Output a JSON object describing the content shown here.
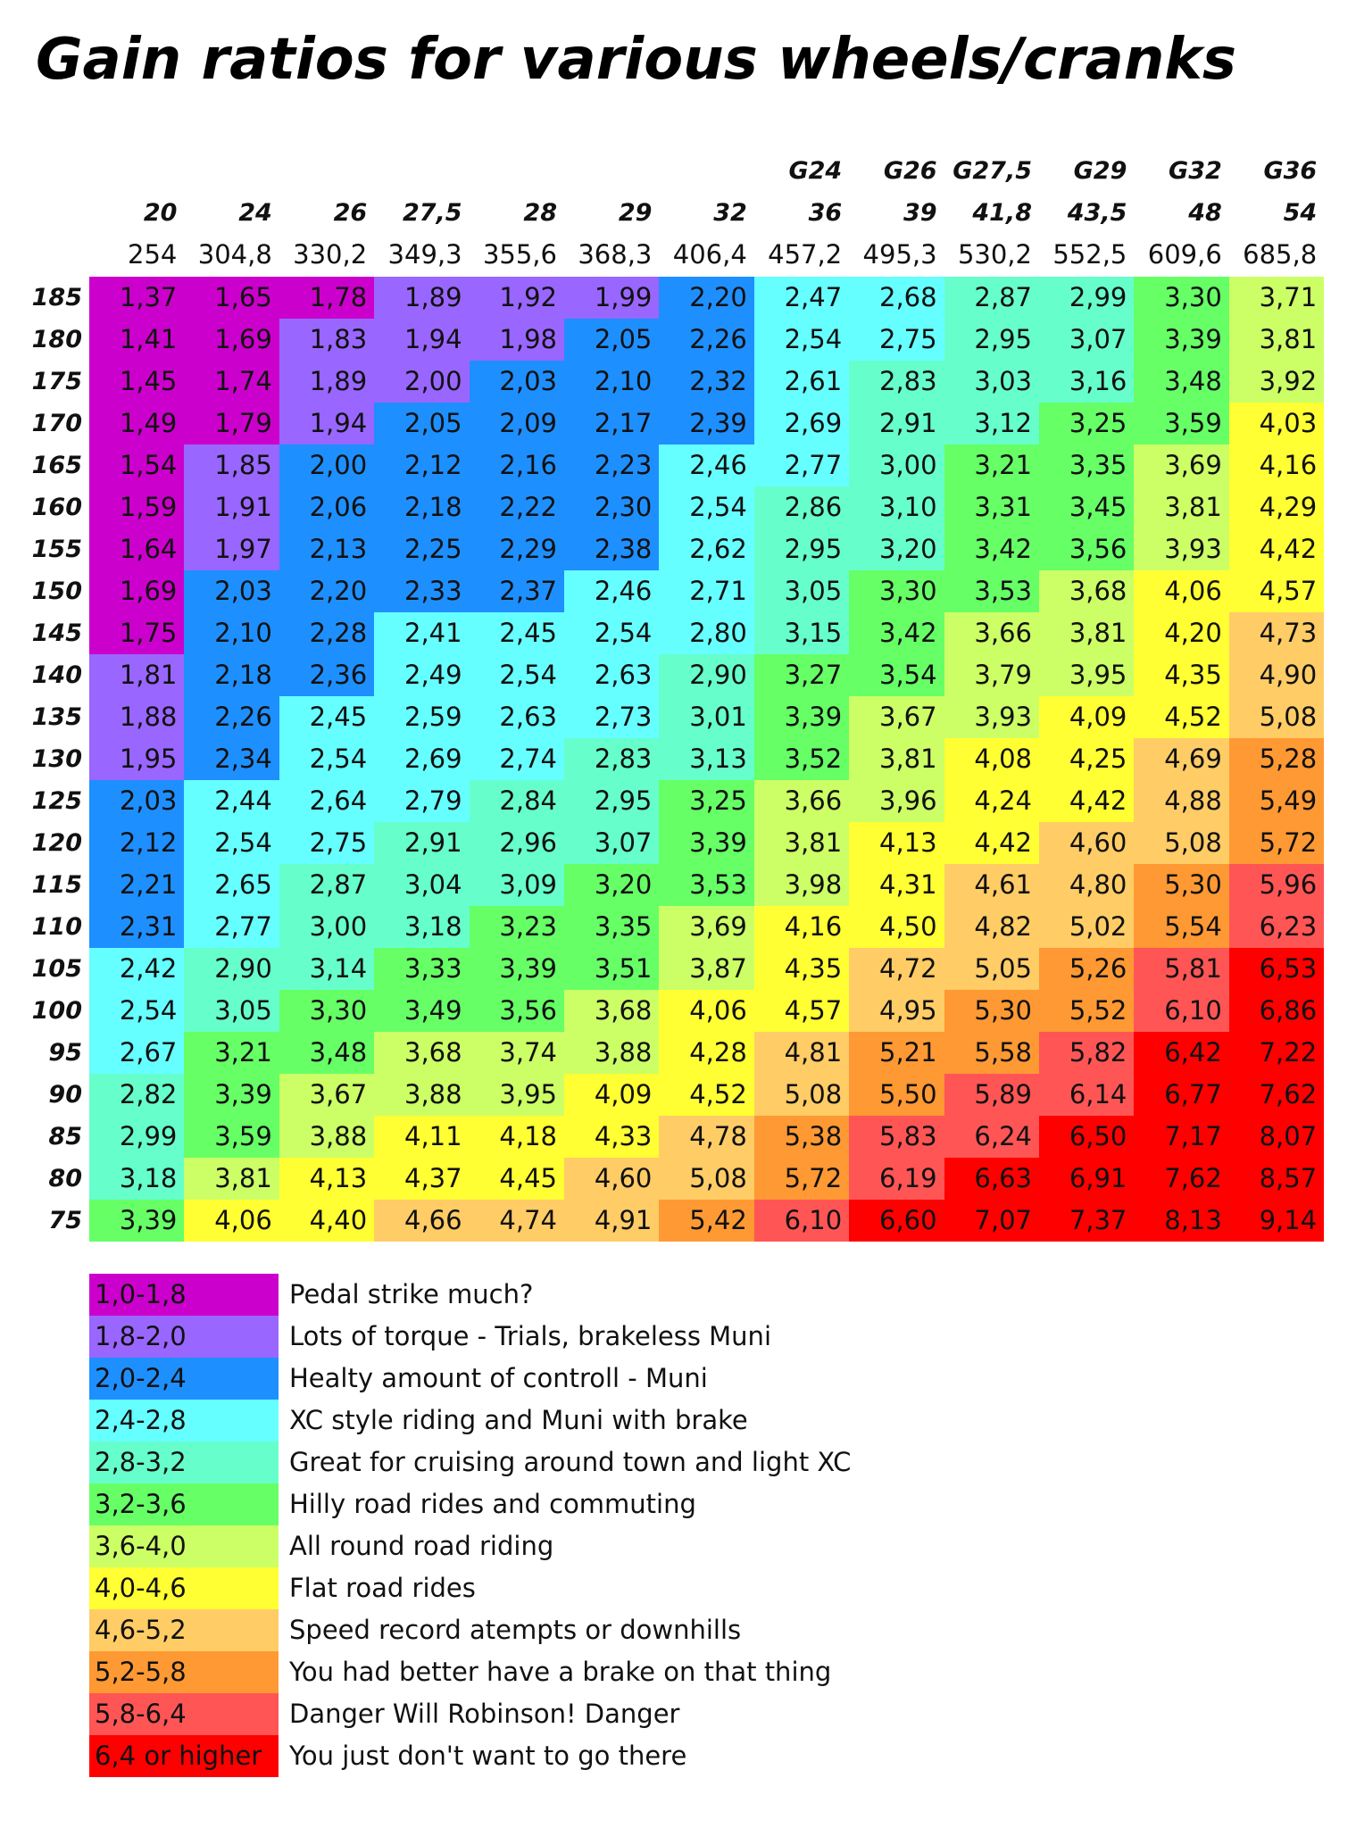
{
  "title": "Gain ratios for various wheels/cranks",
  "table": {
    "gears": [
      "G24",
      "G26",
      "G27,5",
      "G29",
      "G32",
      "G36"
    ],
    "wheels": [
      "20",
      "24",
      "26",
      "27,5",
      "28",
      "29",
      "32",
      "36",
      "39",
      "41,8",
      "43,5",
      "48",
      "54"
    ],
    "diameters": [
      "254",
      "304,8",
      "330,2",
      "349,3",
      "355,6",
      "368,3",
      "406,4",
      "457,2",
      "495,3",
      "530,2",
      "552,5",
      "609,6",
      "685,8"
    ],
    "rows": [
      {
        "crank": "185",
        "cells": [
          "1,37",
          "1,65",
          "1,78",
          "1,89",
          "1,92",
          "1,99",
          "2,20",
          "2,47",
          "2,68",
          "2,87",
          "2,99",
          "3,30",
          "3,71"
        ],
        "bands": [
          0,
          0,
          0,
          1,
          1,
          1,
          2,
          3,
          3,
          4,
          4,
          5,
          6
        ]
      },
      {
        "crank": "180",
        "cells": [
          "1,41",
          "1,69",
          "1,83",
          "1,94",
          "1,98",
          "2,05",
          "2,26",
          "2,54",
          "2,75",
          "2,95",
          "3,07",
          "3,39",
          "3,81"
        ],
        "bands": [
          0,
          0,
          1,
          1,
          1,
          2,
          2,
          3,
          3,
          4,
          4,
          5,
          6
        ]
      },
      {
        "crank": "175",
        "cells": [
          "1,45",
          "1,74",
          "1,89",
          "2,00",
          "2,03",
          "2,10",
          "2,32",
          "2,61",
          "2,83",
          "3,03",
          "3,16",
          "3,48",
          "3,92"
        ],
        "bands": [
          0,
          0,
          1,
          1,
          2,
          2,
          2,
          3,
          4,
          4,
          4,
          5,
          6
        ]
      },
      {
        "crank": "170",
        "cells": [
          "1,49",
          "1,79",
          "1,94",
          "2,05",
          "2,09",
          "2,17",
          "2,39",
          "2,69",
          "2,91",
          "3,12",
          "3,25",
          "3,59",
          "4,03"
        ],
        "bands": [
          0,
          0,
          1,
          2,
          2,
          2,
          2,
          3,
          4,
          4,
          5,
          5,
          7
        ]
      },
      {
        "crank": "165",
        "cells": [
          "1,54",
          "1,85",
          "2,00",
          "2,12",
          "2,16",
          "2,23",
          "2,46",
          "2,77",
          "3,00",
          "3,21",
          "3,35",
          "3,69",
          "4,16"
        ],
        "bands": [
          0,
          1,
          2,
          2,
          2,
          2,
          3,
          3,
          4,
          5,
          5,
          6,
          7
        ]
      },
      {
        "crank": "160",
        "cells": [
          "1,59",
          "1,91",
          "2,06",
          "2,18",
          "2,22",
          "2,30",
          "2,54",
          "2,86",
          "3,10",
          "3,31",
          "3,45",
          "3,81",
          "4,29"
        ],
        "bands": [
          0,
          1,
          2,
          2,
          2,
          2,
          3,
          4,
          4,
          5,
          5,
          6,
          7
        ]
      },
      {
        "crank": "155",
        "cells": [
          "1,64",
          "1,97",
          "2,13",
          "2,25",
          "2,29",
          "2,38",
          "2,62",
          "2,95",
          "3,20",
          "3,42",
          "3,56",
          "3,93",
          "4,42"
        ],
        "bands": [
          0,
          1,
          2,
          2,
          2,
          2,
          3,
          4,
          4,
          5,
          5,
          6,
          7
        ]
      },
      {
        "crank": "150",
        "cells": [
          "1,69",
          "2,03",
          "2,20",
          "2,33",
          "2,37",
          "2,46",
          "2,71",
          "3,05",
          "3,30",
          "3,53",
          "3,68",
          "4,06",
          "4,57"
        ],
        "bands": [
          0,
          2,
          2,
          2,
          2,
          3,
          3,
          4,
          5,
          5,
          6,
          7,
          7
        ]
      },
      {
        "crank": "145",
        "cells": [
          "1,75",
          "2,10",
          "2,28",
          "2,41",
          "2,45",
          "2,54",
          "2,80",
          "3,15",
          "3,42",
          "3,66",
          "3,81",
          "4,20",
          "4,73"
        ],
        "bands": [
          0,
          2,
          2,
          3,
          3,
          3,
          3,
          4,
          5,
          6,
          6,
          7,
          8
        ]
      },
      {
        "crank": "140",
        "cells": [
          "1,81",
          "2,18",
          "2,36",
          "2,49",
          "2,54",
          "2,63",
          "2,90",
          "3,27",
          "3,54",
          "3,79",
          "3,95",
          "4,35",
          "4,90"
        ],
        "bands": [
          1,
          2,
          2,
          3,
          3,
          3,
          4,
          5,
          5,
          6,
          6,
          7,
          8
        ]
      },
      {
        "crank": "135",
        "cells": [
          "1,88",
          "2,26",
          "2,45",
          "2,59",
          "2,63",
          "2,73",
          "3,01",
          "3,39",
          "3,67",
          "3,93",
          "4,09",
          "4,52",
          "5,08"
        ],
        "bands": [
          1,
          2,
          3,
          3,
          3,
          3,
          4,
          5,
          6,
          6,
          7,
          7,
          8
        ]
      },
      {
        "crank": "130",
        "cells": [
          "1,95",
          "2,34",
          "2,54",
          "2,69",
          "2,74",
          "2,83",
          "3,13",
          "3,52",
          "3,81",
          "4,08",
          "4,25",
          "4,69",
          "5,28"
        ],
        "bands": [
          1,
          2,
          3,
          3,
          3,
          4,
          4,
          5,
          6,
          7,
          7,
          8,
          9
        ]
      },
      {
        "crank": "125",
        "cells": [
          "2,03",
          "2,44",
          "2,64",
          "2,79",
          "2,84",
          "2,95",
          "3,25",
          "3,66",
          "3,96",
          "4,24",
          "4,42",
          "4,88",
          "5,49"
        ],
        "bands": [
          2,
          3,
          3,
          3,
          4,
          4,
          5,
          6,
          6,
          7,
          7,
          8,
          9
        ]
      },
      {
        "crank": "120",
        "cells": [
          "2,12",
          "2,54",
          "2,75",
          "2,91",
          "2,96",
          "3,07",
          "3,39",
          "3,81",
          "4,13",
          "4,42",
          "4,60",
          "5,08",
          "5,72"
        ],
        "bands": [
          2,
          3,
          3,
          4,
          4,
          4,
          5,
          6,
          7,
          7,
          8,
          8,
          9
        ]
      },
      {
        "crank": "115",
        "cells": [
          "2,21",
          "2,65",
          "2,87",
          "3,04",
          "3,09",
          "3,20",
          "3,53",
          "3,98",
          "4,31",
          "4,61",
          "4,80",
          "5,30",
          "5,96"
        ],
        "bands": [
          2,
          3,
          4,
          4,
          4,
          5,
          5,
          6,
          7,
          8,
          8,
          9,
          10
        ]
      },
      {
        "crank": "110",
        "cells": [
          "2,31",
          "2,77",
          "3,00",
          "3,18",
          "3,23",
          "3,35",
          "3,69",
          "4,16",
          "4,50",
          "4,82",
          "5,02",
          "5,54",
          "6,23"
        ],
        "bands": [
          2,
          3,
          4,
          4,
          5,
          5,
          6,
          7,
          7,
          8,
          8,
          9,
          10
        ]
      },
      {
        "crank": "105",
        "cells": [
          "2,42",
          "2,90",
          "3,14",
          "3,33",
          "3,39",
          "3,51",
          "3,87",
          "4,35",
          "4,72",
          "5,05",
          "5,26",
          "5,81",
          "6,53"
        ],
        "bands": [
          3,
          4,
          4,
          5,
          5,
          5,
          6,
          7,
          8,
          8,
          9,
          10,
          11
        ]
      },
      {
        "crank": "100",
        "cells": [
          "2,54",
          "3,05",
          "3,30",
          "3,49",
          "3,56",
          "3,68",
          "4,06",
          "4,57",
          "4,95",
          "5,30",
          "5,52",
          "6,10",
          "6,86"
        ],
        "bands": [
          3,
          4,
          5,
          5,
          5,
          6,
          7,
          7,
          8,
          9,
          9,
          10,
          11
        ]
      },
      {
        "crank": "95",
        "cells": [
          "2,67",
          "3,21",
          "3,48",
          "3,68",
          "3,74",
          "3,88",
          "4,28",
          "4,81",
          "5,21",
          "5,58",
          "5,82",
          "6,42",
          "7,22"
        ],
        "bands": [
          3,
          5,
          5,
          6,
          6,
          6,
          7,
          8,
          9,
          9,
          10,
          11,
          11
        ]
      },
      {
        "crank": "90",
        "cells": [
          "2,82",
          "3,39",
          "3,67",
          "3,88",
          "3,95",
          "4,09",
          "4,52",
          "5,08",
          "5,50",
          "5,89",
          "6,14",
          "6,77",
          "7,62"
        ],
        "bands": [
          4,
          5,
          6,
          6,
          6,
          7,
          7,
          8,
          9,
          10,
          10,
          11,
          11
        ]
      },
      {
        "crank": "85",
        "cells": [
          "2,99",
          "3,59",
          "3,88",
          "4,11",
          "4,18",
          "4,33",
          "4,78",
          "5,38",
          "5,83",
          "6,24",
          "6,50",
          "7,17",
          "8,07"
        ],
        "bands": [
          4,
          5,
          6,
          7,
          7,
          7,
          8,
          9,
          10,
          10,
          11,
          11,
          11
        ]
      },
      {
        "crank": "80",
        "cells": [
          "3,18",
          "3,81",
          "4,13",
          "4,37",
          "4,45",
          "4,60",
          "5,08",
          "5,72",
          "6,19",
          "6,63",
          "6,91",
          "7,62",
          "8,57"
        ],
        "bands": [
          4,
          6,
          7,
          7,
          7,
          8,
          8,
          9,
          10,
          11,
          11,
          11,
          11
        ]
      },
      {
        "crank": "75",
        "cells": [
          "3,39",
          "4,06",
          "4,40",
          "4,66",
          "4,74",
          "4,91",
          "5,42",
          "6,10",
          "6,60",
          "7,07",
          "7,37",
          "8,13",
          "9,14"
        ],
        "bands": [
          5,
          7,
          7,
          8,
          8,
          8,
          9,
          10,
          11,
          11,
          11,
          11,
          11
        ]
      }
    ]
  },
  "legend": [
    {
      "range": "1,0-1,8",
      "label": "Pedal strike much?",
      "color": "#cc00cc"
    },
    {
      "range": "1,8-2,0",
      "label": "Lots of torque - Trials, brakeless Muni",
      "color": "#9966ff"
    },
    {
      "range": "2,0-2,4",
      "label": "Healty amount of controll - Muni",
      "color": "#1e8fff"
    },
    {
      "range": "2,4-2,8",
      "label": "XC style riding and Muni with brake",
      "color": "#66ffff"
    },
    {
      "range": "2,8-3,2",
      "label": "Great for cruising around town and light XC",
      "color": "#66ffcc"
    },
    {
      "range": "3,2-3,6",
      "label": "Hilly road rides and commuting",
      "color": "#66ff66"
    },
    {
      "range": "3,6-4,0",
      "label": "All round road riding",
      "color": "#ccff66"
    },
    {
      "range": "4,0-4,6",
      "label": "Flat road rides",
      "color": "#ffff33"
    },
    {
      "range": "4,6-5,2",
      "label": "Speed record atempts or downhills",
      "color": "#ffcc66"
    },
    {
      "range": "5,2-5,8",
      "label": "You had better have a brake on that thing",
      "color": "#ff9933"
    },
    {
      "range": "5,8-6,4",
      "label": "Danger Will Robinson! Danger",
      "color": "#ff5555"
    },
    {
      "range": "6,4 or higher",
      "label": "You just don't want to go there",
      "color": "#ff0000"
    }
  ]
}
